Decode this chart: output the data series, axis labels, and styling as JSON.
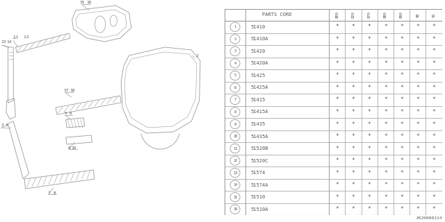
{
  "parts": [
    {
      "num": 1,
      "code": "51410"
    },
    {
      "num": 2,
      "code": "51410A"
    },
    {
      "num": 3,
      "code": "51420"
    },
    {
      "num": 4,
      "code": "51420A"
    },
    {
      "num": 5,
      "code": "51425"
    },
    {
      "num": 6,
      "code": "51425A"
    },
    {
      "num": 7,
      "code": "51415"
    },
    {
      "num": 8,
      "code": "51415A"
    },
    {
      "num": 9,
      "code": "51435"
    },
    {
      "num": 10,
      "code": "51435A"
    },
    {
      "num": 11,
      "code": "51520B"
    },
    {
      "num": 12,
      "code": "51520C"
    },
    {
      "num": 13,
      "code": "51574"
    },
    {
      "num": 14,
      "code": "51574A"
    },
    {
      "num": 15,
      "code": "51510"
    },
    {
      "num": 16,
      "code": "51510A"
    }
  ],
  "col_headers": [
    "800",
    "820",
    "870",
    "880",
    "890",
    "90",
    "91"
  ],
  "bg_color": "#ffffff",
  "line_color": "#999999",
  "text_color": "#555555",
  "footer_code": "A520000114",
  "table_header": "PARTS CORD"
}
